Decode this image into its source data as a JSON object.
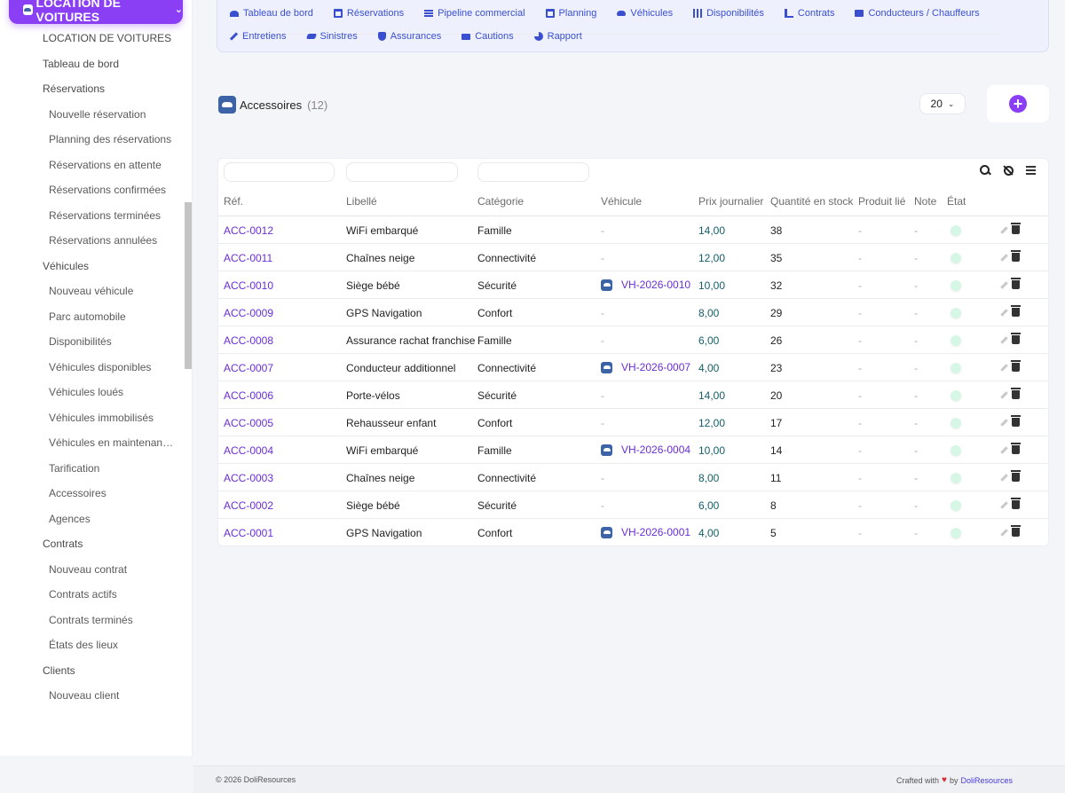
{
  "module": {
    "label": "LOCATION DE VOITURES",
    "chevron": "chevron-down-icon"
  },
  "sidebar": {
    "items": [
      {
        "label": "LOCATION DE VOITURES",
        "level": 0
      },
      {
        "label": "Tableau de bord",
        "level": 0
      },
      {
        "label": "Réservations",
        "level": 0
      },
      {
        "label": "Nouvelle réservation",
        "level": 1
      },
      {
        "label": "Planning des réservations",
        "level": 1
      },
      {
        "label": "Réservations en attente",
        "level": 1
      },
      {
        "label": "Réservations confirmées",
        "level": 1
      },
      {
        "label": "Réservations terminées",
        "level": 1
      },
      {
        "label": "Réservations annulées",
        "level": 1
      },
      {
        "label": "Véhicules",
        "level": 0
      },
      {
        "label": "Nouveau véhicule",
        "level": 1
      },
      {
        "label": "Parc automobile",
        "level": 1
      },
      {
        "label": "Disponibilités",
        "level": 1
      },
      {
        "label": "Véhicules disponibles",
        "level": 1
      },
      {
        "label": "Véhicules loués",
        "level": 1
      },
      {
        "label": "Véhicules immobilisés",
        "level": 1
      },
      {
        "label": "Véhicules en maintenan…",
        "level": 1
      },
      {
        "label": "Tarification",
        "level": 1
      },
      {
        "label": "Accessoires",
        "level": 1
      },
      {
        "label": "Agences",
        "level": 1
      },
      {
        "label": "Contrats",
        "level": 0
      },
      {
        "label": "Nouveau contrat",
        "level": 1
      },
      {
        "label": "Contrats actifs",
        "level": 1
      },
      {
        "label": "Contrats terminés",
        "level": 1
      },
      {
        "label": "États des lieux",
        "level": 1
      },
      {
        "label": "Clients",
        "level": 0
      },
      {
        "label": "Nouveau client",
        "level": 1
      }
    ]
  },
  "topnav": {
    "row1": [
      {
        "label": "Tableau de bord",
        "icon": "dash"
      },
      {
        "label": "Réservations",
        "icon": "cal"
      },
      {
        "label": "Pipeline commercial",
        "icon": "lines"
      },
      {
        "label": "Planning",
        "icon": "cal"
      },
      {
        "label": "Véhicules",
        "icon": "car"
      },
      {
        "label": "Disponibilités",
        "icon": "grid"
      },
      {
        "label": "Contrats",
        "icon": "sign"
      },
      {
        "label": "Conducteurs / Chauffeurs",
        "icon": "card"
      }
    ],
    "row2": [
      {
        "label": "Entretiens",
        "icon": "wrench"
      },
      {
        "label": "Sinistres",
        "icon": "crash"
      },
      {
        "label": "Assurances",
        "icon": "shield"
      },
      {
        "label": "Cautions",
        "icon": "money"
      },
      {
        "label": "Rapport",
        "icon": "pie"
      }
    ]
  },
  "page": {
    "title": "Accessoires",
    "count": "(12)",
    "limit": "20"
  },
  "table": {
    "columns": [
      "Réf.",
      "Libellé",
      "Catégorie",
      "Véhicule",
      "Prix journalier",
      "Quantité en stock",
      "Produit lié",
      "Note",
      "État"
    ],
    "rows": [
      {
        "ref": "ACC-0012",
        "label": "WiFi embarqué",
        "category": "Famille",
        "vehicle": "",
        "price": "14,00",
        "qty": "38",
        "product": "-",
        "note": "-"
      },
      {
        "ref": "ACC-0011",
        "label": "Chaînes neige",
        "category": "Connectivité",
        "vehicle": "",
        "price": "12,00",
        "qty": "35",
        "product": "-",
        "note": "-"
      },
      {
        "ref": "ACC-0010",
        "label": "Siège bébé",
        "category": "Sécurité",
        "vehicle": "VH-2026-0010",
        "price": "10,00",
        "qty": "32",
        "product": "-",
        "note": "-"
      },
      {
        "ref": "ACC-0009",
        "label": "GPS Navigation",
        "category": "Confort",
        "vehicle": "",
        "price": "8,00",
        "qty": "29",
        "product": "-",
        "note": "-"
      },
      {
        "ref": "ACC-0008",
        "label": "Assurance rachat franchise",
        "category": "Famille",
        "vehicle": "",
        "price": "6,00",
        "qty": "26",
        "product": "-",
        "note": "-"
      },
      {
        "ref": "ACC-0007",
        "label": "Conducteur additionnel",
        "category": "Connectivité",
        "vehicle": "VH-2026-0007",
        "price": "4,00",
        "qty": "23",
        "product": "-",
        "note": "-"
      },
      {
        "ref": "ACC-0006",
        "label": "Porte-vélos",
        "category": "Sécurité",
        "vehicle": "",
        "price": "14,00",
        "qty": "20",
        "product": "-",
        "note": "-"
      },
      {
        "ref": "ACC-0005",
        "label": "Rehausseur enfant",
        "category": "Confort",
        "vehicle": "",
        "price": "12,00",
        "qty": "17",
        "product": "-",
        "note": "-"
      },
      {
        "ref": "ACC-0004",
        "label": "WiFi embarqué",
        "category": "Famille",
        "vehicle": "VH-2026-0004",
        "price": "10,00",
        "qty": "14",
        "product": "-",
        "note": "-"
      },
      {
        "ref": "ACC-0003",
        "label": "Chaînes neige",
        "category": "Connectivité",
        "vehicle": "",
        "price": "8,00",
        "qty": "11",
        "product": "-",
        "note": "-"
      },
      {
        "ref": "ACC-0002",
        "label": "Siège bébé",
        "category": "Sécurité",
        "vehicle": "",
        "price": "6,00",
        "qty": "8",
        "product": "-",
        "note": "-"
      },
      {
        "ref": "ACC-0001",
        "label": "GPS Navigation",
        "category": "Confort",
        "vehicle": "VH-2026-0001",
        "price": "4,00",
        "qty": "5",
        "product": "-",
        "note": "-"
      }
    ],
    "empty_vehicle": "-"
  },
  "footer": {
    "copyright": "© 2026 DoliResources",
    "crafted": "Crafted with",
    "by": "by",
    "brand": "DoliResources"
  },
  "colors": {
    "accent": "#8b3ff5",
    "link": "#6b2ed6",
    "nav": "#3a4fd0",
    "price": "#145e68",
    "status": "#d6f7e5"
  }
}
